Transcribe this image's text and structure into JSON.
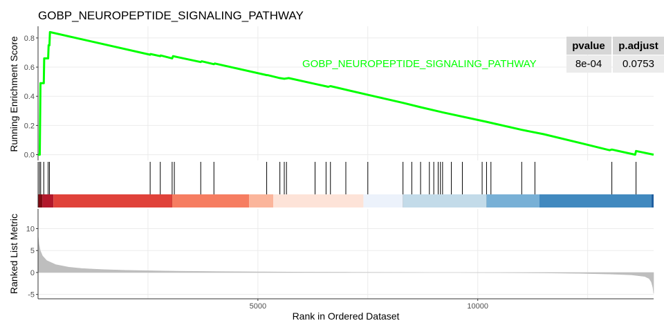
{
  "chart_data": {
    "type": "line",
    "title": "GOBP_NEUROPEPTIDE_SIGNALING_PATHWAY",
    "series_name": "GOBP_NEUROPEPTIDE_SIGNALING_PATHWAY",
    "series_color": "#00ff00",
    "xlabel": "Rank in Ordered Dataset",
    "xlim": [
      0,
      14000
    ],
    "x_ticks": [
      5000,
      10000
    ],
    "x_gridlines": [
      2500,
      5000,
      7500,
      10000,
      12500
    ],
    "es_panel": {
      "ylabel": "Running Enrichment Score",
      "ylim": [
        -0.04,
        0.88
      ],
      "y_ticks": [
        0.0,
        0.2,
        0.4,
        0.6,
        0.8
      ],
      "points": [
        [
          0,
          0
        ],
        [
          40,
          0
        ],
        [
          55,
          0.49
        ],
        [
          130,
          0.49
        ],
        [
          140,
          0.66
        ],
        [
          230,
          0.66
        ],
        [
          240,
          0.75
        ],
        [
          260,
          0.75
        ],
        [
          270,
          0.84
        ],
        [
          2550,
          0.685
        ],
        [
          2560,
          0.69
        ],
        [
          2780,
          0.675
        ],
        [
          2790,
          0.68
        ],
        [
          3050,
          0.66
        ],
        [
          3070,
          0.675
        ],
        [
          3700,
          0.635
        ],
        [
          3720,
          0.64
        ],
        [
          4000,
          0.62
        ],
        [
          4020,
          0.625
        ],
        [
          5200,
          0.545
        ],
        [
          5220,
          0.545
        ],
        [
          5500,
          0.525
        ],
        [
          5600,
          0.52
        ],
        [
          5700,
          0.525
        ],
        [
          6300,
          0.485
        ],
        [
          6600,
          0.465
        ],
        [
          6650,
          0.47
        ],
        [
          7500,
          0.41
        ],
        [
          8300,
          0.355
        ],
        [
          8700,
          0.325
        ],
        [
          9200,
          0.29
        ],
        [
          10200,
          0.225
        ],
        [
          11000,
          0.17
        ],
        [
          11500,
          0.14
        ],
        [
          12400,
          0.075
        ],
        [
          13000,
          0.03
        ],
        [
          13050,
          0.035
        ],
        [
          13580,
          0.0
        ],
        [
          13600,
          0.025
        ],
        [
          14000,
          0.0
        ]
      ]
    },
    "hits": [
      30,
      60,
      130,
      230,
      260,
      2550,
      2780,
      3050,
      3100,
      3700,
      4000,
      5200,
      5500,
      5600,
      5650,
      6300,
      6550,
      6650,
      7000,
      7500,
      8300,
      8500,
      8700,
      8900,
      9000,
      9100,
      9150,
      9200,
      9400,
      9650,
      10100,
      10200,
      10300,
      11000,
      11300,
      13050,
      13600
    ],
    "rank_panel": {
      "ylabel": "Ranked List Metric",
      "ylim": [
        -6,
        14.5
      ],
      "y_ticks": [
        -5,
        0,
        5,
        10
      ],
      "fill_color": "#bebebe",
      "curve": [
        [
          0,
          8.5
        ],
        [
          20,
          6.5
        ],
        [
          50,
          5.0
        ],
        [
          100,
          3.8
        ],
        [
          200,
          2.7
        ],
        [
          400,
          1.8
        ],
        [
          700,
          1.2
        ],
        [
          1000,
          0.9
        ],
        [
          1500,
          0.65
        ],
        [
          2000,
          0.5
        ],
        [
          3000,
          0.32
        ],
        [
          4000,
          0.22
        ],
        [
          5000,
          0.15
        ],
        [
          6000,
          0.09
        ],
        [
          7000,
          0.05
        ],
        [
          8000,
          0.02
        ],
        [
          8900,
          0.0
        ],
        [
          9600,
          0.0
        ],
        [
          10500,
          -0.04
        ],
        [
          11500,
          -0.1
        ],
        [
          12300,
          -0.2
        ],
        [
          13000,
          -0.35
        ],
        [
          13500,
          -0.55
        ],
        [
          13800,
          -0.9
        ],
        [
          13900,
          -1.4
        ],
        [
          13950,
          -2.2
        ],
        [
          13985,
          -3.5
        ],
        [
          14000,
          -4.8
        ]
      ]
    },
    "heatmap_bands": [
      {
        "start": 0,
        "end": 100,
        "color": "#7f0a12"
      },
      {
        "start": 100,
        "end": 350,
        "color": "#b2182b"
      },
      {
        "start": 350,
        "end": 3050,
        "color": "#e0423a"
      },
      {
        "start": 3050,
        "end": 4800,
        "color": "#f67d61"
      },
      {
        "start": 4800,
        "end": 5350,
        "color": "#fbb59b"
      },
      {
        "start": 5350,
        "end": 7400,
        "color": "#fde3d8"
      },
      {
        "start": 7400,
        "end": 8300,
        "color": "#ecf2fb"
      },
      {
        "start": 8300,
        "end": 10200,
        "color": "#c3dbe9"
      },
      {
        "start": 10200,
        "end": 11400,
        "color": "#78b0d6"
      },
      {
        "start": 11400,
        "end": 13950,
        "color": "#4189bf"
      },
      {
        "start": 13950,
        "end": 14000,
        "color": "#1f5fa0"
      }
    ],
    "table": {
      "headers": [
        "pvalue",
        "p.adjust"
      ],
      "rows": [
        [
          "8e-04",
          "0.0753"
        ]
      ]
    }
  }
}
